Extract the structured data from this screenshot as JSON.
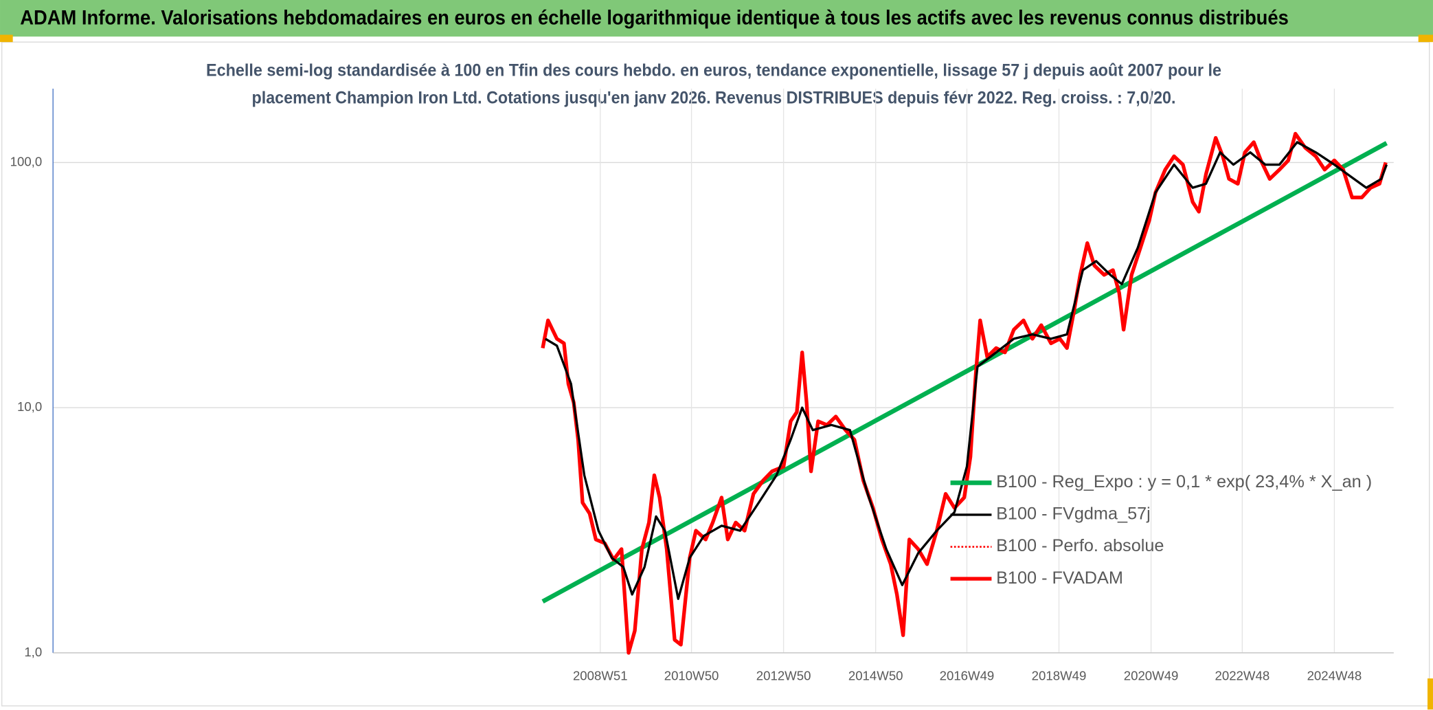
{
  "chart_data": {
    "type": "line",
    "title": "ADAM Informe. Valorisations hebdomadaires en euros en échelle logarithmique identique à tous les actifs avec les revenus connus distribués",
    "subtitle": [
      "Echelle semi-log standardisée à 100 en Tfin des cours hebdo. en euros, tendance exponentielle, lissage 57 j depuis août 2007 pour le",
      "placement Champion Iron Ltd. Cotations jusqu'en janv 2026. Revenus DISTRIBUES depuis févr 2022. Reg. croiss. : 7,0/20."
    ],
    "log_scale": true,
    "grid": true,
    "legend": "lower right",
    "xlim": [
      "1997W05",
      "2026W11"
    ],
    "xticks": [
      "2008W51",
      "2010W50",
      "2012W50",
      "2014W50",
      "2016W49",
      "2018W49",
      "2020W49",
      "2022W48",
      "2024W48"
    ],
    "ylim": [
      1,
      200
    ],
    "yticks": [
      {
        "value": 1,
        "label": "1,0"
      },
      {
        "value": 10,
        "label": "10,0"
      },
      {
        "value": 100,
        "label": "100,0"
      }
    ],
    "series": [
      {
        "name": "B100 - Reg_Expo : y = 0,1 * exp( 23,4% *  X_an )",
        "color": "#00b050",
        "style": "solid",
        "x": [
          "2007W38",
          "2026W03"
        ],
        "values": [
          1.62,
          120
        ]
      },
      {
        "name": "B100 - FVgdma_57j",
        "color": "#000000",
        "style": "solid",
        "x": [
          "2007W41",
          "2008W02",
          "2008W18",
          "2008W33",
          "2008W49",
          "2009W12",
          "2009W25",
          "2009W35",
          "2009W49",
          "2010W10",
          "2010W20",
          "2010W35",
          "2010W48",
          "2011W12",
          "2011W32",
          "2012W01",
          "2012W22",
          "2012W42",
          "2013W06",
          "2013W19",
          "2013W31",
          "2013W52",
          "2014W21",
          "2014W41",
          "2015W10",
          "2015W28",
          "2015W46",
          "2016W15",
          "2016W35",
          "2016W49",
          "2017W09",
          "2017W30",
          "2017W50",
          "2018W19",
          "2018W40",
          "2019W06",
          "2019W24",
          "2019W39",
          "2020W03",
          "2020W16",
          "2020W34",
          "2021W02",
          "2021W23",
          "2021W44",
          "2022W07",
          "2022W23",
          "2022W38",
          "2023W05",
          "2023W22",
          "2023W38",
          "2024W06",
          "2024W27",
          "2024W48",
          "2025W11",
          "2025W32",
          "2025W49",
          "2026W03"
        ],
        "values": [
          19.1,
          17.9,
          12.5,
          5.3,
          3.15,
          2.44,
          2.24,
          1.73,
          2.24,
          3.6,
          3.15,
          1.66,
          2.44,
          3.0,
          3.3,
          3.15,
          4.1,
          5.3,
          7.4,
          10.0,
          8.1,
          8.5,
          8.1,
          4.45,
          2.65,
          1.89,
          2.55,
          3.15,
          3.75,
          5.75,
          14.7,
          16.8,
          19.1,
          19.9,
          19.1,
          19.9,
          36.4,
          39.6,
          34.8,
          31.9,
          44.9,
          75.4,
          98,
          78.9,
          81.9,
          110,
          98,
          110,
          98,
          98,
          121,
          110,
          98,
          89.5,
          78.9,
          85.7,
          98
        ]
      },
      {
        "name": "B100 - Perfo. absolue",
        "color": "#ff0000",
        "style": "dotted",
        "x": [],
        "values": []
      },
      {
        "name": "B100 - FVADAM",
        "color": "#ff0000",
        "style": "solid",
        "x": [
          "2007W38",
          "2007W44",
          "2008W02",
          "2008W10",
          "2008W15",
          "2008W21",
          "2008W26",
          "2008W31",
          "2008W39",
          "2008W46",
          "2009W04",
          "2009W14",
          "2009W23",
          "2009W31",
          "2009W38",
          "2009W46",
          "2010W02",
          "2010W08",
          "2010W14",
          "2010W22",
          "2010W31",
          "2010W38",
          "2010W48",
          "2011W03",
          "2011W14",
          "2011W22",
          "2011W32",
          "2011W39",
          "2011W48",
          "2012W06",
          "2012W16",
          "2012W27",
          "2012W37",
          "2012W50",
          "2013W06",
          "2013W13",
          "2013W19",
          "2013W24",
          "2013W29",
          "2013W37",
          "2013W47",
          "2014W05",
          "2014W16",
          "2014W26",
          "2014W36",
          "2014W47",
          "2015W05",
          "2015W15",
          "2015W22",
          "2015W29",
          "2015W36",
          "2015W46",
          "2016W04",
          "2016W15",
          "2016W25",
          "2016W35",
          "2016W46",
          "2017W01",
          "2017W07",
          "2017W12",
          "2017W20",
          "2017W30",
          "2017W40",
          "2017W50",
          "2018W09",
          "2018W19",
          "2018W29",
          "2018W40",
          "2018W50",
          "2019W06",
          "2019W14",
          "2019W21",
          "2019W29",
          "2019W37",
          "2019W48",
          "2020W06",
          "2020W13",
          "2020W18",
          "2020W27",
          "2020W37",
          "2020W47",
          "2021W02",
          "2021W13",
          "2021W23",
          "2021W33",
          "2021W44",
          "2021W51",
          "2022W07",
          "2022W18",
          "2022W26",
          "2022W33",
          "2022W43",
          "2022W51",
          "2023W09",
          "2023W17",
          "2023W27",
          "2023W38",
          "2023W48",
          "2024W04",
          "2024W15",
          "2024W27",
          "2024W37",
          "2024W48",
          "2025W06",
          "2025W16",
          "2025W27",
          "2025W37",
          "2025W47",
          "2026W02"
        ],
        "values": [
          17.5,
          22.7,
          19.1,
          18.3,
          12.5,
          10.5,
          7.4,
          4.1,
          3.7,
          2.9,
          2.8,
          2.4,
          2.65,
          1.0,
          1.23,
          2.65,
          3.4,
          5.3,
          4.3,
          2.65,
          1.13,
          1.08,
          2.44,
          3.15,
          2.9,
          3.4,
          4.3,
          2.9,
          3.4,
          3.15,
          4.45,
          5.05,
          5.5,
          5.75,
          8.8,
          9.6,
          16.8,
          10.5,
          5.5,
          8.8,
          8.5,
          9.2,
          8.1,
          7.4,
          5.05,
          3.9,
          2.9,
          2.3,
          1.73,
          1.18,
          2.9,
          2.65,
          2.3,
          3.15,
          4.45,
          3.9,
          4.3,
          6.3,
          13.6,
          22.7,
          16.1,
          17.5,
          16.8,
          20.8,
          22.7,
          19.1,
          21.7,
          18.3,
          19.1,
          17.5,
          24.8,
          34.8,
          46.9,
          38.0,
          34.8,
          36.4,
          29.4,
          20.8,
          34.8,
          44.9,
          58.1,
          75.4,
          93.5,
          106,
          98,
          69,
          63,
          89.5,
          126,
          106,
          85.7,
          81.9,
          110,
          121,
          102,
          85.7,
          93.5,
          102,
          131,
          115,
          106,
          93.5,
          102,
          93.5,
          72,
          72,
          78.9,
          81.9,
          100
        ]
      }
    ]
  }
}
